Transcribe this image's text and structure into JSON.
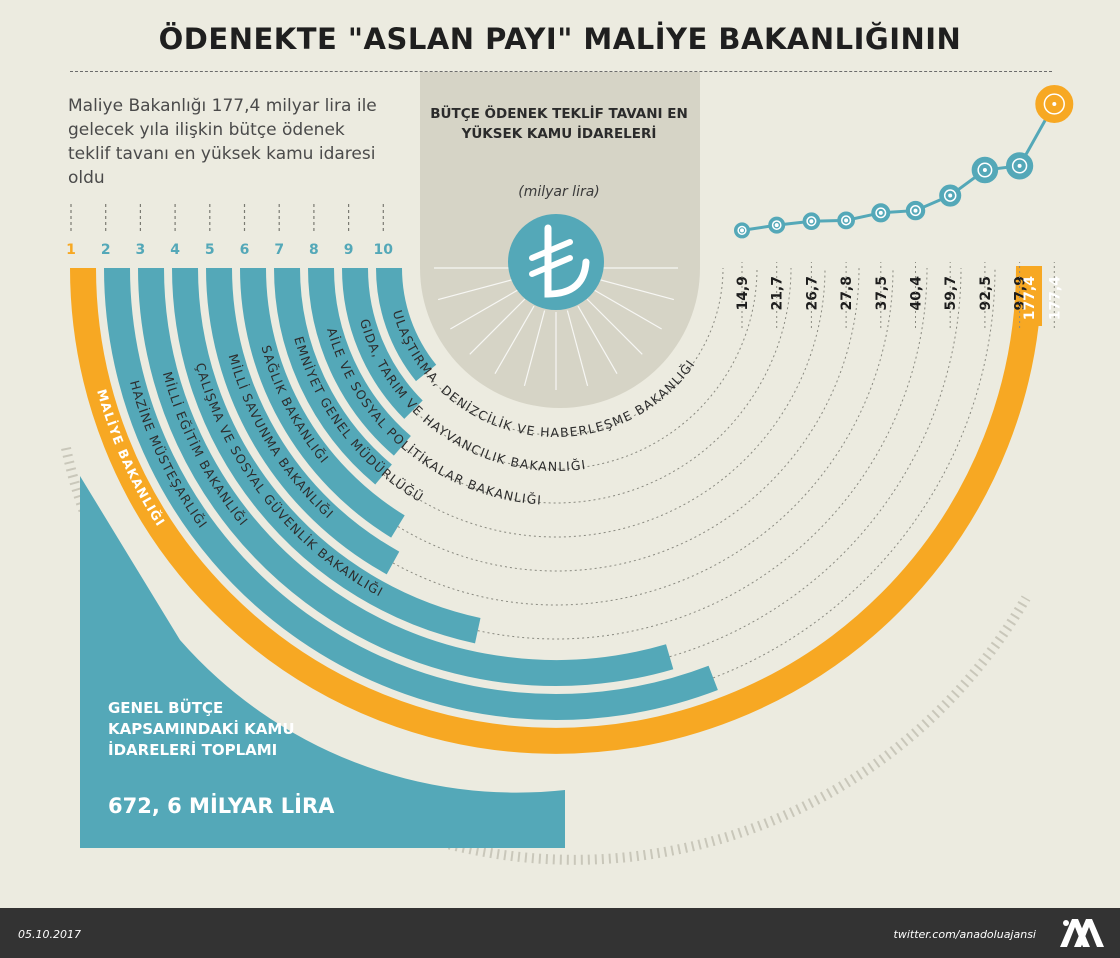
{
  "title": "ÖDENEKTE \"ASLAN PAYI\" MALİYE BAKANLIĞININ",
  "intro": "Maliye Bakanlığı 177,4 milyar lira ile gelecek yıla ilişkin bütçe ödenek teklif tavanı en yüksek kamu idaresi oldu",
  "center_heading": "BÜTÇE ÖDENEK TEKLİF TAVANI EN YÜKSEK KAMU İDARELERİ",
  "unit": "(milyar lira)",
  "total_label": "GENEL BÜTÇE KAPSAMINDAKİ KAMU İDARELERİ TOPLAMI",
  "total_value": "672, 6 MİLYAR LİRA",
  "footer": {
    "date": "05.10.2017",
    "twitter": "twitter.com/anadoluajansi",
    "logo": "AA",
    "logo_icon": "anadolu-agency-logo"
  },
  "currency_icon": "turkish-lira-icon",
  "colors": {
    "background": "#ecebe0",
    "teal": "#54a8b8",
    "orange": "#f7a823",
    "dark": "#333333",
    "center_band": "#d6d4c6"
  },
  "chart_data": {
    "type": "bar",
    "layout": "radial",
    "categories": [
      "MALİYE BAKANLIĞI",
      "HAZİNE MÜSTEŞARLIĞI",
      "MİLLİ EĞİTİM BAKANLIĞI",
      "ÇALIŞMA VE SOSYAL GÜVENLİK BAKANLIĞI",
      "MİLLİ SAVUNMA BAKANLIĞI",
      "SAĞLIK BAKANLIĞI",
      "EMNİYET GENEL MÜDÜRLÜĞÜ",
      "AİLE VE SOSYAL POLİTİKALAR BAKANLIĞI",
      "GIDA, TARIM VE HAYVANCILIK BAKANLIĞI",
      "ULAŞTIRMA, DENİZCİLİK VE HABERLEŞME BAKANLIĞI"
    ],
    "ranks": [
      "1",
      "2",
      "3",
      "4",
      "5",
      "6",
      "7",
      "8",
      "9",
      "10"
    ],
    "values": [
      177.4,
      97.9,
      92.5,
      59.7,
      40.4,
      37.5,
      27.8,
      26.7,
      21.7,
      14.9
    ],
    "value_labels": [
      "177,4",
      "97,9",
      "92,5",
      "59,7",
      "40,4",
      "37,5",
      "27,8",
      "26,7",
      "21,7",
      "14,9"
    ],
    "highlight_index": 0
  }
}
